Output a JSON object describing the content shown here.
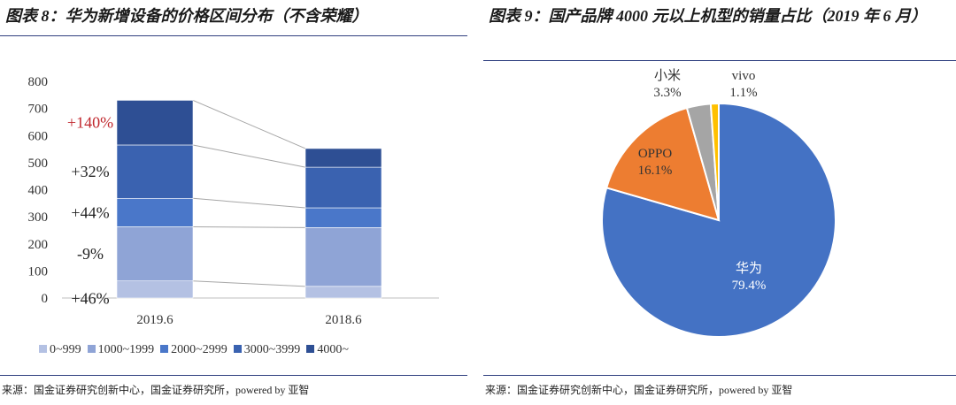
{
  "left": {
    "title": "图表 8：华为新增设备的价格区间分布（不含荣耀）",
    "source": "来源：国金证券研究创新中心，国金证券研究所，powered by 亚智",
    "annotations": [
      {
        "text": "+140%",
        "color": "#c0272d"
      },
      {
        "text": "+32%",
        "color": "#222222"
      },
      {
        "text": "+44%",
        "color": "#222222"
      },
      {
        "text": "-9%",
        "color": "#222222"
      },
      {
        "text": "+46%",
        "color": "#222222"
      }
    ]
  },
  "right": {
    "title": "图表 9：国产品牌 4000 元以上机型的销量占比（2019 年 6 月）",
    "source": "来源：国金证券研究创新中心，国金证券研究所，powered by 亚智"
  },
  "chart_data": [
    {
      "type": "bar",
      "stacked": true,
      "categories": [
        "2019.6",
        "2018.6"
      ],
      "series": [
        {
          "name": "0~999",
          "values": [
            63,
            43
          ],
          "color": "#b4c1e3"
        },
        {
          "name": "1000~1999",
          "values": [
            200,
            217
          ],
          "color": "#8fa4d6"
        },
        {
          "name": "2000~2999",
          "values": [
            105,
            73
          ],
          "color": "#4a77c9"
        },
        {
          "name": "3000~3999",
          "values": [
            197,
            150
          ],
          "color": "#3a62b0"
        },
        {
          "name": "4000~",
          "values": [
            165,
            69
          ],
          "color": "#2e4f94"
        }
      ],
      "ylim": [
        0,
        800
      ],
      "yticks": [
        "0",
        "100",
        "200",
        "300",
        "400",
        "500",
        "600",
        "700",
        "800"
      ],
      "legend": "bottom",
      "title": "",
      "xlabel": "",
      "ylabel": ""
    },
    {
      "type": "pie",
      "labels": [
        "华为",
        "OPPO",
        "小米",
        "vivo"
      ],
      "values": [
        79.4,
        16.1,
        3.3,
        1.1
      ],
      "value_labels": [
        "79.4%",
        "16.1%",
        "3.3%",
        "1.1%"
      ],
      "colors": [
        "#4472c4",
        "#ed7d31",
        "#a5a5a5",
        "#ffc000"
      ]
    }
  ]
}
